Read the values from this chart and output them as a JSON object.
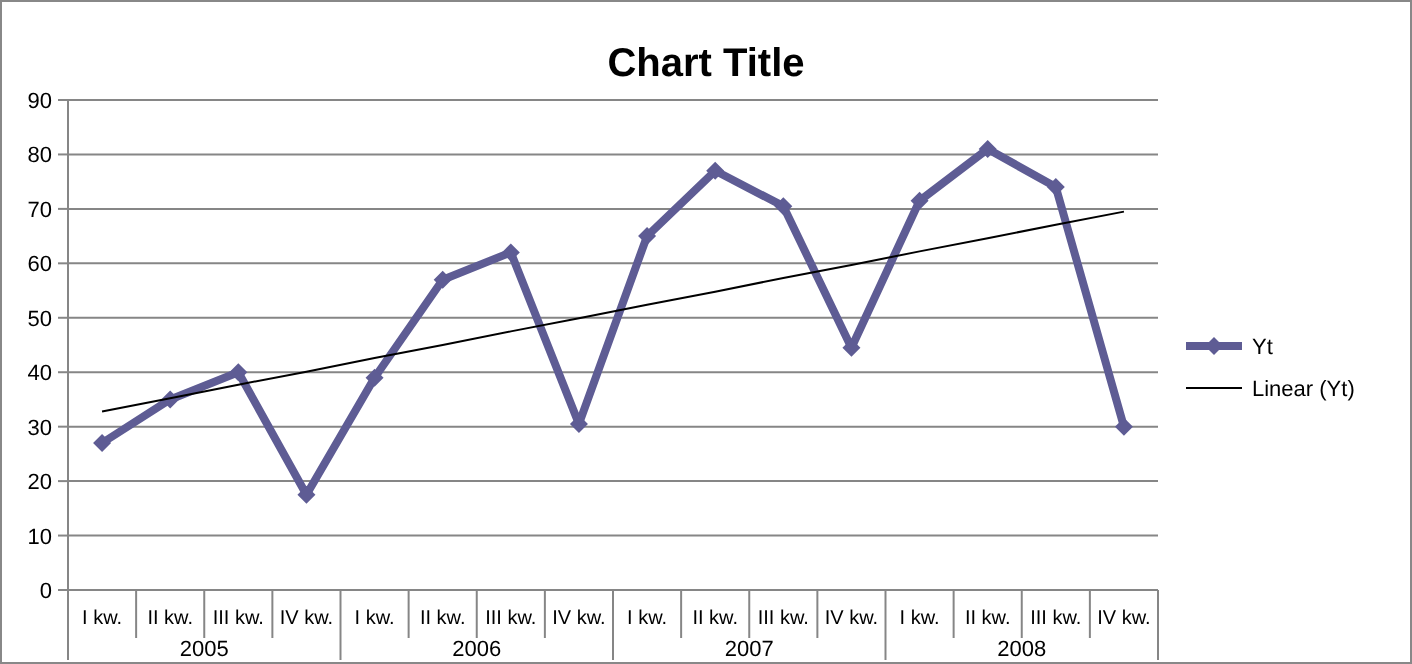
{
  "chart_data": {
    "type": "line",
    "title": "Chart Title",
    "categories": [
      "I kw.",
      "II kw.",
      "III kw.",
      "IV kw.",
      "I kw.",
      "II kw.",
      "III kw.",
      "IV kw.",
      "I kw.",
      "II kw.",
      "III kw.",
      "IV kw.",
      "I kw.",
      "II kw.",
      "III kw.",
      "IV kw."
    ],
    "series": [
      {
        "name": "Yt",
        "color": "#5e5c94",
        "marker": "diamond",
        "values": [
          27,
          35,
          40,
          17.5,
          39,
          57,
          62,
          30.5,
          65,
          77,
          70.5,
          44.5,
          71.5,
          81,
          74,
          30
        ]
      },
      {
        "name": "Linear (Yt)",
        "color": "#000000",
        "marker": "none",
        "values": [
          32.8,
          35.2,
          37.7,
          40.1,
          42.6,
          45.0,
          47.5,
          49.9,
          52.4,
          54.8,
          57.3,
          59.7,
          62.2,
          64.6,
          67.1,
          69.5
        ]
      }
    ],
    "annotations": [
      "2005",
      "2006",
      "2007",
      "2008"
    ],
    "ylim": [
      0,
      90
    ],
    "yticks": [
      0,
      10,
      20,
      30,
      40,
      50,
      60,
      70,
      80,
      90
    ],
    "grid": "y",
    "legend": "right",
    "line_style": "solid"
  }
}
